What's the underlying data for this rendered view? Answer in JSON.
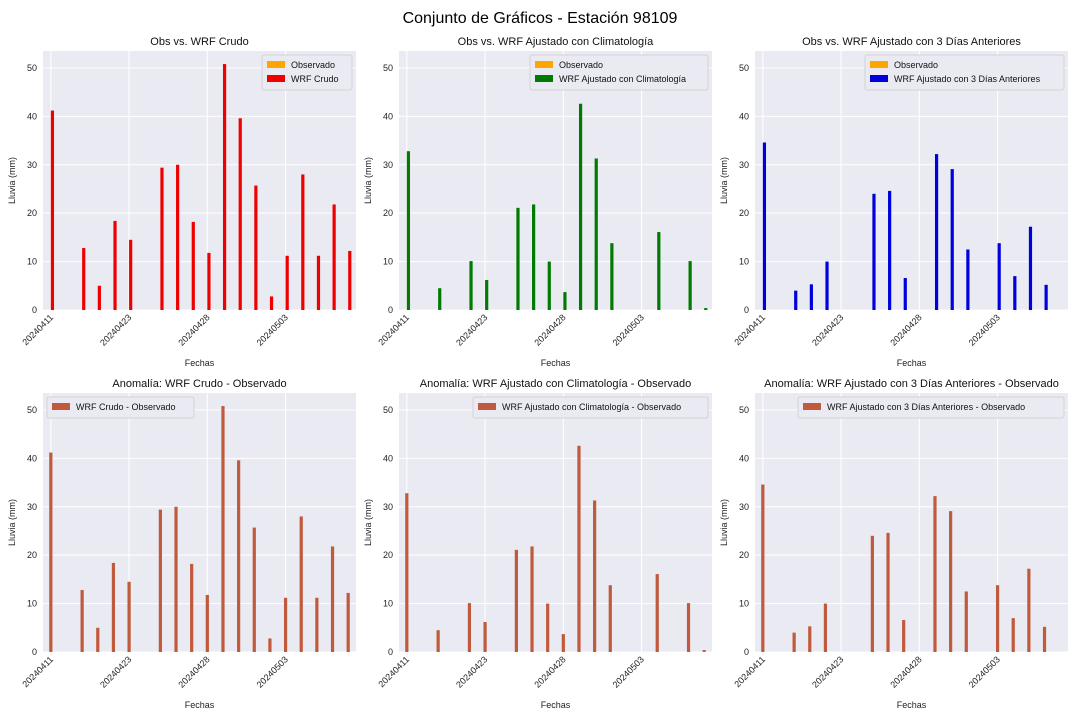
{
  "figure": {
    "suptitle": "Conjunto de Gráficos - Estación 98109"
  },
  "chart_data": [
    {
      "type": "bar",
      "title": "Obs vs. WRF Crudo",
      "xlabel": "Fechas",
      "ylabel": "Lluvia (mm)",
      "ylim": [
        0,
        53.5
      ],
      "yticks": [
        0,
        10,
        20,
        30,
        40,
        50
      ],
      "x_tick_labels": [
        "20240411",
        "20240423",
        "20240428",
        "20240503"
      ],
      "grid": true,
      "legend": "top-right",
      "series": [
        {
          "name": "Observado",
          "color": "#ffa500",
          "values": [
            0,
            0,
            0,
            0,
            0,
            0,
            0,
            0,
            0,
            0,
            0,
            0,
            0,
            0,
            0,
            0,
            0,
            0,
            0,
            0
          ]
        },
        {
          "name": "WRF Crudo",
          "color": "#ee0000",
          "values": [
            41.2,
            0,
            12.8,
            5.0,
            18.4,
            14.5,
            0,
            29.4,
            30.0,
            18.2,
            11.8,
            50.8,
            39.6,
            25.7,
            2.8,
            11.2,
            28.0,
            11.2,
            21.8,
            12.2
          ]
        }
      ]
    },
    {
      "type": "bar",
      "title": "Obs vs. WRF Ajustado con Climatología",
      "xlabel": "Fechas",
      "ylabel": "Lluvia (mm)",
      "ylim": [
        0,
        53.5
      ],
      "yticks": [
        0,
        10,
        20,
        30,
        40,
        50
      ],
      "x_tick_labels": [
        "20240411",
        "20240423",
        "20240428",
        "20240503"
      ],
      "grid": true,
      "legend": "top-right",
      "series": [
        {
          "name": "Observado",
          "color": "#ffa500",
          "values": [
            0,
            0,
            0,
            0,
            0,
            0,
            0,
            0,
            0,
            0,
            0,
            0,
            0,
            0,
            0,
            0,
            0,
            0,
            0,
            0
          ]
        },
        {
          "name": "WRF Ajustado con Climatología",
          "color": "#007a00",
          "values": [
            32.8,
            0,
            4.5,
            0,
            10.1,
            6.2,
            0,
            21.1,
            21.8,
            10.0,
            3.7,
            42.6,
            31.3,
            13.8,
            0,
            0,
            16.1,
            0,
            10.1,
            0.4
          ]
        }
      ]
    },
    {
      "type": "bar",
      "title": "Obs vs. WRF Ajustado con 3 Días Anteriores",
      "xlabel": "Fechas",
      "ylabel": "Lluvia (mm)",
      "ylim": [
        0,
        53.5
      ],
      "yticks": [
        0,
        10,
        20,
        30,
        40,
        50
      ],
      "x_tick_labels": [
        "20240411",
        "20240423",
        "20240428",
        "20240503"
      ],
      "grid": true,
      "legend": "top-right",
      "series": [
        {
          "name": "Observado",
          "color": "#ffa500",
          "values": [
            0,
            0,
            0,
            0,
            0,
            0,
            0,
            0,
            0,
            0,
            0,
            0,
            0,
            0,
            0,
            0,
            0,
            0,
            0,
            0
          ]
        },
        {
          "name": "WRF Ajustado con 3 Días Anteriores",
          "color": "#0000dd",
          "values": [
            34.6,
            0,
            4.0,
            5.3,
            10.0,
            0,
            0,
            24.0,
            24.6,
            6.6,
            0,
            32.2,
            29.1,
            12.5,
            0,
            13.8,
            7.0,
            17.2,
            5.2,
            0
          ]
        }
      ]
    },
    {
      "type": "bar",
      "title": "Anomalía: WRF Crudo - Observado",
      "xlabel": "Fechas",
      "ylabel": "Lluvia (mm)",
      "ylim": [
        0,
        53.5
      ],
      "yticks": [
        0,
        10,
        20,
        30,
        40,
        50
      ],
      "x_tick_labels": [
        "20240411",
        "20240423",
        "20240428",
        "20240503"
      ],
      "grid": true,
      "legend": "top-left",
      "series": [
        {
          "name": "WRF Crudo - Observado",
          "color": "#c05a3c",
          "values": [
            41.2,
            0,
            12.8,
            5.0,
            18.4,
            14.5,
            0,
            29.4,
            30.0,
            18.2,
            11.8,
            50.8,
            39.6,
            25.7,
            2.8,
            11.2,
            28.0,
            11.2,
            21.8,
            12.2
          ]
        }
      ]
    },
    {
      "type": "bar",
      "title": "Anomalía: WRF Ajustado con Climatología - Observado",
      "xlabel": "Fechas",
      "ylabel": "Lluvia (mm)",
      "ylim": [
        0,
        53.5
      ],
      "yticks": [
        0,
        10,
        20,
        30,
        40,
        50
      ],
      "x_tick_labels": [
        "20240411",
        "20240423",
        "20240428",
        "20240503"
      ],
      "grid": true,
      "legend": "top-right",
      "series": [
        {
          "name": "WRF Ajustado con Climatología - Observado",
          "color": "#c05a3c",
          "values": [
            32.8,
            0,
            4.5,
            0,
            10.1,
            6.2,
            0,
            21.1,
            21.8,
            10.0,
            3.7,
            42.6,
            31.3,
            13.8,
            0,
            0,
            16.1,
            0,
            10.1,
            0.4
          ]
        }
      ]
    },
    {
      "type": "bar",
      "title": "Anomalía: WRF Ajustado con 3 Días Anteriores - Observado",
      "xlabel": "Fechas",
      "ylabel": "Lluvia (mm)",
      "ylim": [
        0,
        53.5
      ],
      "yticks": [
        0,
        10,
        20,
        30,
        40,
        50
      ],
      "x_tick_labels": [
        "20240411",
        "20240423",
        "20240428",
        "20240503"
      ],
      "grid": true,
      "legend": "top-right",
      "series": [
        {
          "name": "WRF Ajustado con 3 Días Anteriores - Observado",
          "color": "#c05a3c",
          "values": [
            34.6,
            0,
            4.0,
            5.3,
            10.0,
            0,
            0,
            24.0,
            24.6,
            6.6,
            0,
            32.2,
            29.1,
            12.5,
            0,
            13.8,
            7.0,
            17.2,
            5.2,
            0
          ]
        }
      ]
    }
  ]
}
